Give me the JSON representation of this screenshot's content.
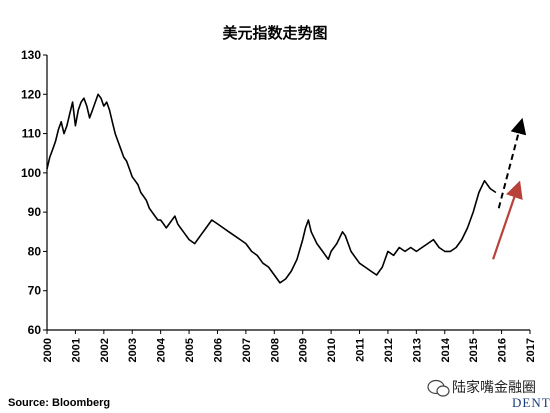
{
  "chart_data": {
    "type": "line",
    "title": "美元指数走势图",
    "xlabel": "",
    "ylabel": "",
    "ylim": [
      60,
      130
    ],
    "xlim": [
      2000,
      2017
    ],
    "yticks": [
      "60",
      "70",
      "80",
      "90",
      "100",
      "110",
      "120",
      "130"
    ],
    "xticks": [
      "2000",
      "2001",
      "2002",
      "2003",
      "2004",
      "2005",
      "2006",
      "2007",
      "2008",
      "2009",
      "2010",
      "2011",
      "2012",
      "2013",
      "2014",
      "2015",
      "2016",
      "2017"
    ],
    "grid": false,
    "legend": "none",
    "series": [
      {
        "x": [
          2000.0,
          2000.1,
          2000.2,
          2000.3,
          2000.4,
          2000.5,
          2000.6,
          2000.7,
          2000.8,
          2000.9,
          2001.0,
          2001.1,
          2001.2,
          2001.3,
          2001.4,
          2001.5,
          2001.6,
          2001.7,
          2001.8,
          2001.9,
          2002.0,
          2002.1,
          2002.2,
          2002.3,
          2002.4,
          2002.5,
          2002.6,
          2002.7,
          2002.8,
          2002.9,
          2003.0,
          2003.1,
          2003.2,
          2003.3,
          2003.4,
          2003.5,
          2003.6,
          2003.7,
          2003.8,
          2003.9,
          2004.0,
          2004.1,
          2004.2,
          2004.3,
          2004.4,
          2004.5,
          2004.6,
          2004.7,
          2004.8,
          2004.9,
          2005.0,
          2005.2,
          2005.4,
          2005.6,
          2005.8,
          2006.0,
          2006.2,
          2006.4,
          2006.6,
          2006.8,
          2007.0,
          2007.2,
          2007.4,
          2007.6,
          2007.8,
          2008.0,
          2008.2,
          2008.4,
          2008.6,
          2008.8,
          2009.0,
          2009.1,
          2009.2,
          2009.3,
          2009.5,
          2009.7,
          2009.9,
          2010.0,
          2010.2,
          2010.4,
          2010.5,
          2010.7,
          2010.9,
          2011.0,
          2011.2,
          2011.4,
          2011.6,
          2011.8,
          2012.0,
          2012.2,
          2012.4,
          2012.6,
          2012.8,
          2013.0,
          2013.2,
          2013.4,
          2013.6,
          2013.8,
          2014.0,
          2014.2,
          2014.4,
          2014.6,
          2014.8,
          2015.0,
          2015.2,
          2015.4,
          2015.6,
          2015.8
        ],
        "values": [
          101,
          104,
          106,
          108,
          111,
          113,
          110,
          112,
          115,
          118,
          112,
          116,
          118,
          119,
          117,
          114,
          116,
          118,
          120,
          119,
          117,
          118,
          116,
          113,
          110,
          108,
          106,
          104,
          103,
          101,
          99,
          98,
          97,
          95,
          94,
          93,
          91,
          90,
          89,
          88,
          88,
          87,
          86,
          87,
          88,
          89,
          87,
          86,
          85,
          84,
          83,
          82,
          84,
          86,
          88,
          87,
          86,
          85,
          84,
          83,
          82,
          80,
          79,
          77,
          76,
          74,
          72,
          73,
          75,
          78,
          83,
          86,
          88,
          85,
          82,
          80,
          78,
          80,
          82,
          85,
          84,
          80,
          78,
          77,
          76,
          75,
          74,
          76,
          80,
          79,
          81,
          80,
          81,
          80,
          81,
          82,
          83,
          81,
          80,
          80,
          81,
          83,
          86,
          90,
          95,
          98,
          96,
          95
        ],
        "style": "solid",
        "color": "#000000"
      },
      {
        "x": [
          2015.9,
          2016.7
        ],
        "values": [
          91,
          113
        ],
        "style": "dashed",
        "color": "#000000"
      },
      {
        "x": [
          2015.7,
          2016.6
        ],
        "values": [
          78,
          97
        ],
        "style": "arrow",
        "color": "#b8413a"
      }
    ],
    "source": "Source: Bloomberg"
  },
  "watermark": {
    "text": "陆家嘴金融圈",
    "icon": "wechat-icon",
    "brand": "DENT"
  }
}
